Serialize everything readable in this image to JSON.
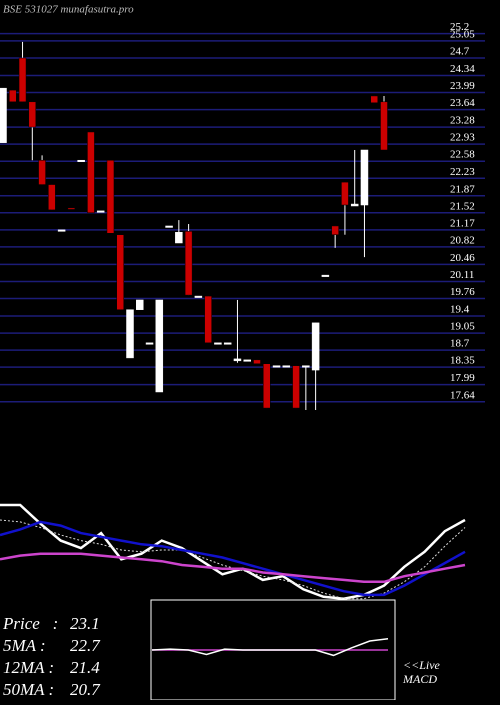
{
  "chart_data": {
    "type": "candlestick",
    "title": "BSE 531027 munafasutra.pro",
    "ylim": [
      17.47,
      25.48
    ],
    "yticks": [
      25.2,
      25.05,
      24.7,
      24.34,
      23.99,
      23.64,
      23.28,
      22.93,
      22.58,
      22.23,
      21.87,
      21.52,
      21.17,
      20.82,
      20.46,
      20.11,
      19.76,
      19.4,
      19.05,
      18.7,
      18.35,
      17.99,
      17.64
    ],
    "grid": true,
    "grid_color": "#1c1c78",
    "up_color": "#ffffff",
    "down_color": "#cc0000",
    "candles": [
      {
        "open": 22.96,
        "high": 24.08,
        "low": 22.96,
        "close": 24.08
      },
      {
        "open": 24.04,
        "high": 24.04,
        "low": 23.8,
        "close": 23.8
      },
      {
        "open": 24.7,
        "high": 25.03,
        "low": 23.8,
        "close": 23.8
      },
      {
        "open": 23.8,
        "high": 23.8,
        "low": 22.6,
        "close": 23.28
      },
      {
        "open": 22.6,
        "high": 22.7,
        "low": 22.1,
        "close": 22.1
      },
      {
        "open": 22.1,
        "high": 22.1,
        "low": 21.58,
        "close": 21.58
      },
      {
        "open": 21.17,
        "high": 21.17,
        "low": 21.17,
        "close": 21.17
      },
      {
        "open": 21.62,
        "high": 21.62,
        "low": 21.62,
        "close": 21.6
      },
      {
        "open": 22.6,
        "high": 22.6,
        "low": 22.6,
        "close": 22.6
      },
      {
        "open": 23.18,
        "high": 23.18,
        "low": 21.52,
        "close": 21.52
      },
      {
        "open": 21.56,
        "high": 21.56,
        "low": 21.56,
        "close": 21.56
      },
      {
        "open": 22.6,
        "high": 22.6,
        "low": 21.1,
        "close": 21.1
      },
      {
        "open": 21.07,
        "high": 21.07,
        "low": 19.53,
        "close": 19.53
      },
      {
        "open": 18.54,
        "high": 19.53,
        "low": 18.54,
        "close": 19.53
      },
      {
        "open": 19.53,
        "high": 19.73,
        "low": 19.53,
        "close": 19.73
      },
      {
        "open": 18.85,
        "high": 18.85,
        "low": 18.85,
        "close": 18.85
      },
      {
        "open": 17.84,
        "high": 19.73,
        "low": 17.84,
        "close": 19.73
      },
      {
        "open": 21.25,
        "high": 21.25,
        "low": 21.25,
        "close": 21.25
      },
      {
        "open": 20.9,
        "high": 21.37,
        "low": 20.9,
        "close": 21.12
      },
      {
        "open": 21.14,
        "high": 21.29,
        "low": 19.83,
        "close": 19.83
      },
      {
        "open": 19.81,
        "high": 19.81,
        "low": 19.81,
        "close": 19.81
      },
      {
        "open": 19.81,
        "high": 19.81,
        "low": 18.85,
        "close": 18.85
      },
      {
        "open": 18.85,
        "high": 18.85,
        "low": 18.85,
        "close": 18.85
      },
      {
        "open": 18.85,
        "high": 18.85,
        "low": 18.85,
        "close": 18.85
      },
      {
        "open": 18.48,
        "high": 19.73,
        "low": 18.44,
        "close": 18.52
      },
      {
        "open": 18.5,
        "high": 18.5,
        "low": 18.5,
        "close": 18.5
      },
      {
        "open": 18.5,
        "high": 18.5,
        "low": 18.42,
        "close": 18.42
      },
      {
        "open": 18.42,
        "high": 18.42,
        "low": 17.51,
        "close": 17.51
      },
      {
        "open": 18.38,
        "high": 18.38,
        "low": 18.38,
        "close": 18.38
      },
      {
        "open": 18.38,
        "high": 18.38,
        "low": 18.38,
        "close": 18.38
      },
      {
        "open": 18.38,
        "high": 18.38,
        "low": 17.51,
        "close": 17.51
      },
      {
        "open": 18.38,
        "high": 18.38,
        "low": 17.47,
        "close": 18.38
      },
      {
        "open": 18.29,
        "high": 19.26,
        "low": 17.47,
        "close": 19.26
      },
      {
        "open": 20.24,
        "high": 20.24,
        "low": 20.24,
        "close": 20.24
      },
      {
        "open": 21.25,
        "high": 21.25,
        "low": 20.8,
        "close": 21.07
      },
      {
        "open": 22.15,
        "high": 22.15,
        "low": 21.07,
        "close": 21.68
      },
      {
        "open": 21.66,
        "high": 22.81,
        "low": 21.66,
        "close": 21.7
      },
      {
        "open": 21.68,
        "high": 22.81,
        "low": 20.61,
        "close": 22.81
      },
      {
        "open": 23.92,
        "high": 23.92,
        "low": 23.78,
        "close": 23.78
      },
      {
        "open": 23.8,
        "high": 23.92,
        "low": 22.81,
        "close": 22.81
      }
    ],
    "ma_panel": {
      "ylim": [
        18.83,
        24.7
      ],
      "series": [
        {
          "name": "Price",
          "color": "#ffffff",
          "values": [
            23.9,
            23.9,
            22.9,
            22.0,
            21.6,
            22.4,
            21.0,
            21.3,
            22.0,
            21.6,
            20.9,
            20.2,
            20.5,
            19.9,
            20.1,
            19.4,
            19.0,
            18.9,
            19.1,
            19.6,
            20.6,
            21.4,
            22.5,
            23.1
          ]
        },
        {
          "name": "5MA",
          "color": "#dddddd",
          "values": [
            23.1,
            23.0,
            22.7,
            22.3,
            22.0,
            21.8,
            21.5,
            21.4,
            21.5,
            21.5,
            21.1,
            20.7,
            20.4,
            20.1,
            19.9,
            19.6,
            19.2,
            18.9,
            18.9,
            19.2,
            19.8,
            20.6,
            21.7,
            22.7
          ]
        },
        {
          "name": "12MA",
          "color": "#1111cc",
          "values": [
            22.3,
            22.6,
            23.0,
            22.8,
            22.4,
            22.2,
            22.0,
            21.8,
            21.7,
            21.5,
            21.3,
            21.1,
            20.8,
            20.5,
            20.2,
            19.9,
            19.6,
            19.3,
            19.1,
            19.1,
            19.6,
            20.2,
            20.8,
            21.4
          ]
        },
        {
          "name": "50MA",
          "color": "#cc44cc",
          "values": [
            21.0,
            21.2,
            21.3,
            21.3,
            21.3,
            21.2,
            21.1,
            21.0,
            20.9,
            20.7,
            20.6,
            20.5,
            20.5,
            20.3,
            20.2,
            20.1,
            20.0,
            19.9,
            19.8,
            19.8,
            20.1,
            20.3,
            20.5,
            20.7
          ]
        }
      ]
    },
    "info": [
      {
        "label": "Price   :",
        "value": 23.1
      },
      {
        "label": "5MA :",
        "value": 22.7
      },
      {
        "label": "12MA :",
        "value": 21.4
      },
      {
        "label": "50MA :",
        "value": 20.7
      }
    ],
    "macd": {
      "title": "MACD",
      "link": "<<Live",
      "ylim": [
        -1,
        1
      ],
      "series": [
        {
          "color": "#ffffff",
          "values": [
            0.0,
            0.02,
            0.0,
            -0.1,
            0.02,
            0.0,
            0.0,
            0.0,
            0.0,
            0.0,
            -0.12,
            0.05,
            0.2,
            0.25
          ]
        },
        {
          "color": "#cc44cc",
          "values": [
            0.0,
            0.0,
            0.0,
            0.0,
            0.0,
            0.0,
            0.0,
            0.0,
            0.0,
            0.0,
            0.0,
            0.0,
            0.0,
            0.0
          ]
        }
      ]
    }
  }
}
